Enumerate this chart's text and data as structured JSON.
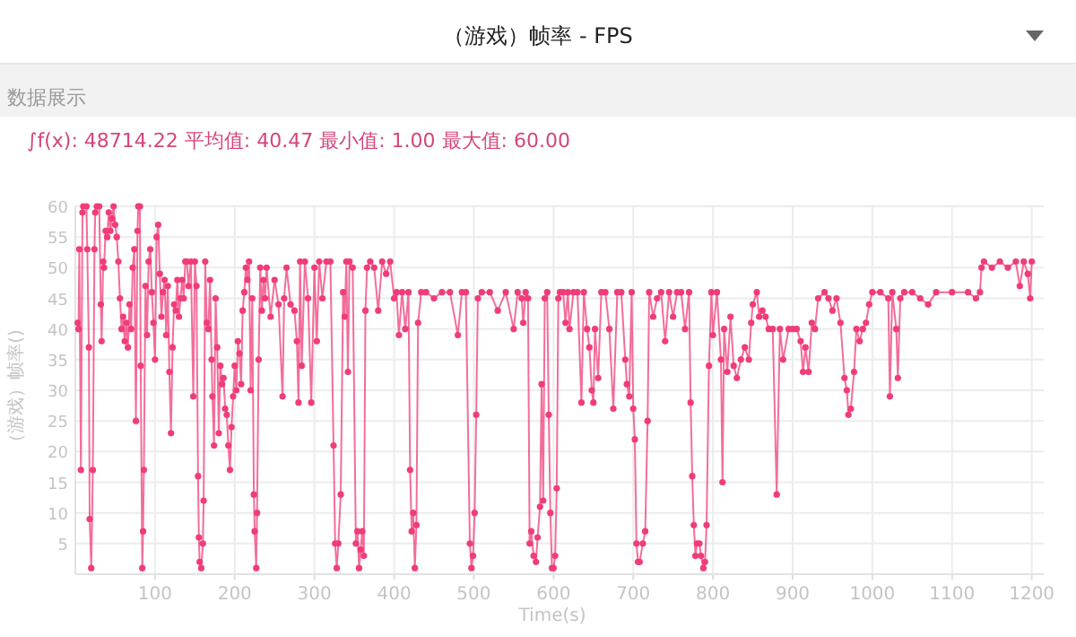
{
  "chart_data": {
    "type": "line",
    "title": "（游戏）帧率 - FPS",
    "subtitle": "∫f(x): 48714.22 平均值: 40.47 最小值: 1.00 最大值: 60.00",
    "annotations": [
      "数据展示"
    ],
    "xlabel": "Time(s)",
    "ylabel": "（游戏）帧率()",
    "xlim": [
      0,
      1215
    ],
    "ylim": [
      0,
      60
    ],
    "xticks": [
      100,
      200,
      300,
      400,
      500,
      600,
      700,
      800,
      900,
      1000,
      1100,
      1200
    ],
    "yticks": [
      5,
      10,
      15,
      20,
      25,
      30,
      35,
      40,
      45,
      50,
      55,
      60
    ],
    "grid": true,
    "marker": "circle",
    "series": [
      {
        "color": "#f03c78",
        "x": [
          3,
          4,
          5,
          7,
          9,
          10,
          14,
          15,
          17,
          18,
          20,
          22,
          24,
          25,
          27,
          30,
          32,
          33,
          35,
          36,
          38,
          40,
          42,
          44,
          46,
          48,
          50,
          52,
          54,
          56,
          58,
          60,
          62,
          64,
          66,
          68,
          70,
          72,
          74,
          76,
          78,
          79,
          81,
          82,
          84,
          85,
          86,
          88,
          90,
          92,
          94,
          96,
          98,
          100,
          102,
          104,
          106,
          108,
          110,
          112,
          114,
          116,
          118,
          120,
          122,
          124,
          126,
          128,
          130,
          132,
          134,
          136,
          138,
          140,
          142,
          145,
          148,
          150,
          152,
          154,
          155,
          156,
          158,
          160,
          161,
          163,
          165,
          167,
          169,
          171,
          172,
          174,
          176,
          178,
          180,
          182,
          184,
          186,
          188,
          190,
          192,
          194,
          196,
          198,
          200,
          202,
          204,
          206,
          208,
          210,
          212,
          214,
          216,
          218,
          220,
          222,
          224,
          225,
          227,
          228,
          230,
          232,
          234,
          236,
          238,
          240,
          245,
          250,
          255,
          260,
          262,
          265,
          270,
          275,
          278,
          280,
          282,
          284,
          288,
          292,
          296,
          300,
          303,
          306,
          310,
          315,
          320,
          324,
          326,
          328,
          330,
          333,
          336,
          338,
          340,
          342,
          344,
          348,
          352,
          354,
          356,
          358,
          360,
          362,
          364,
          366,
          370,
          375,
          380,
          385,
          390,
          395,
          400,
          403,
          406,
          410,
          414,
          418,
          420,
          422,
          424,
          426,
          428,
          430,
          434,
          440,
          450,
          460,
          470,
          480,
          485,
          490,
          495,
          497,
          499,
          501,
          503,
          505,
          510,
          520,
          530,
          540,
          550,
          555,
          560,
          562,
          565,
          568,
          570,
          572,
          575,
          578,
          580,
          583,
          585,
          587,
          589,
          592,
          594,
          596,
          598,
          600,
          602,
          604,
          606,
          608,
          612,
          615,
          618,
          620,
          625,
          630,
          635,
          638,
          642,
          645,
          648,
          650,
          652,
          656,
          660,
          665,
          670,
          675,
          680,
          685,
          690,
          692,
          695,
          698,
          700,
          702,
          704,
          706,
          708,
          712,
          715,
          718,
          720,
          725,
          730,
          735,
          740,
          745,
          750,
          755,
          760,
          765,
          770,
          772,
          774,
          776,
          778,
          780,
          783,
          785,
          788,
          790,
          792,
          795,
          798,
          800,
          805,
          810,
          812,
          814,
          818,
          822,
          826,
          830,
          835,
          840,
          845,
          848,
          850,
          855,
          858,
          862,
          866,
          870,
          875,
          880,
          884,
          888,
          895,
          900,
          905,
          910,
          913,
          916,
          920,
          924,
          928,
          932,
          940,
          945,
          950,
          955,
          960,
          965,
          968,
          970,
          973,
          977,
          980,
          984,
          988,
          992,
          996,
          1000,
          1010,
          1020,
          1022,
          1025,
          1030,
          1032,
          1035,
          1040,
          1050,
          1060,
          1070,
          1080,
          1100,
          1120,
          1130,
          1135,
          1137,
          1140,
          1150,
          1160,
          1170,
          1180,
          1185,
          1190,
          1195,
          1198,
          1200
        ],
        "values": [
          41,
          40,
          53,
          17,
          59,
          60,
          60,
          53,
          37,
          9,
          1,
          17,
          53,
          59,
          60,
          60,
          44,
          38,
          51,
          50,
          56,
          55,
          59,
          56,
          58,
          60,
          57,
          55,
          51,
          45,
          40,
          42,
          38,
          41,
          37,
          44,
          40,
          50,
          53,
          25,
          56,
          60,
          60,
          34,
          1,
          7,
          17,
          47,
          39,
          51,
          53,
          46,
          41,
          35,
          55,
          57,
          49,
          42,
          46,
          48,
          39,
          47,
          33,
          23,
          37,
          44,
          43,
          48,
          42,
          45,
          48,
          45,
          51,
          51,
          47,
          51,
          29,
          51,
          47,
          16,
          6,
          2,
          1,
          5,
          12,
          51,
          41,
          40,
          48,
          35,
          29,
          21,
          45,
          37,
          23,
          34,
          31,
          32,
          27,
          26,
          21,
          17,
          24,
          29,
          34,
          30,
          38,
          36,
          31,
          43,
          46,
          50,
          48,
          51,
          30,
          45,
          13,
          7,
          1,
          10,
          35,
          50,
          43,
          48,
          45,
          50,
          42,
          48,
          44,
          29,
          45,
          50,
          44,
          43,
          38,
          28,
          51,
          34,
          51,
          45,
          28,
          50,
          38,
          51,
          45,
          51,
          51,
          21,
          5,
          1,
          5,
          13,
          46,
          42,
          51,
          33,
          51,
          50,
          5,
          7,
          1,
          4,
          7,
          3,
          43,
          50,
          51,
          50,
          43,
          51,
          49,
          51,
          45,
          46,
          39,
          46,
          40,
          46,
          17,
          7,
          10,
          1,
          8,
          41,
          46,
          46,
          45,
          46,
          46,
          39,
          46,
          46,
          5,
          1,
          3,
          10,
          26,
          45,
          46,
          46,
          43,
          46,
          40,
          46,
          45,
          41,
          46,
          45,
          5,
          7,
          3,
          2,
          6,
          11,
          31,
          12,
          45,
          46,
          26,
          10,
          1,
          1,
          3,
          14,
          45,
          46,
          46,
          41,
          46,
          40,
          46,
          46,
          28,
          46,
          40,
          37,
          30,
          28,
          40,
          32,
          46,
          46,
          40,
          27,
          46,
          46,
          35,
          31,
          29,
          46,
          27,
          22,
          5,
          2,
          2,
          5,
          7,
          25,
          46,
          42,
          45,
          46,
          38,
          46,
          42,
          46,
          46,
          40,
          46,
          28,
          16,
          8,
          3,
          5,
          5,
          3,
          1,
          2,
          8,
          34,
          46,
          39,
          46,
          35,
          15,
          40,
          33,
          42,
          34,
          32,
          35,
          37,
          35,
          41,
          44,
          46,
          42,
          43,
          42,
          40,
          40,
          13,
          40,
          35,
          40,
          40,
          40,
          38,
          33,
          37,
          33,
          41,
          40,
          45,
          46,
          45,
          43,
          45,
          41,
          32,
          30,
          26,
          27,
          33,
          40,
          38,
          40,
          41,
          44,
          46,
          46,
          45,
          29,
          46,
          40,
          32,
          45,
          46,
          46,
          45,
          44,
          46,
          46,
          46,
          45,
          46,
          50,
          51,
          50,
          51,
          50,
          51,
          47,
          51,
          49,
          45,
          51
        ]
      }
    ]
  }
}
